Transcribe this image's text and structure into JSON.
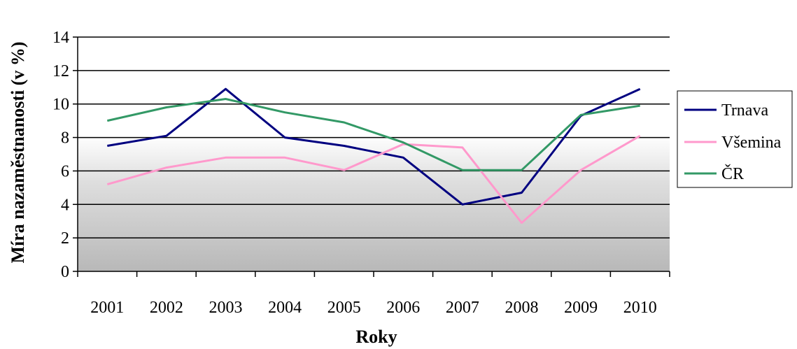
{
  "chart_data": {
    "type": "line",
    "title": "",
    "xlabel": "Roky",
    "ylabel": "Míra nazaměstnanosti (v %)",
    "categories": [
      "2001",
      "2002",
      "2003",
      "2004",
      "2005",
      "2006",
      "2007",
      "2008",
      "2009",
      "2010"
    ],
    "ylim": [
      0,
      14
    ],
    "yticks": [
      0,
      2,
      4,
      6,
      8,
      10,
      12,
      14
    ],
    "grid": true,
    "legend_position": "right",
    "series": [
      {
        "name": "Trnava",
        "color": "#000080",
        "values": [
          7.5,
          8.1,
          10.9,
          8.0,
          7.5,
          6.8,
          4.0,
          4.7,
          9.3,
          10.9
        ]
      },
      {
        "name": "Všemina",
        "color": "#ff99cc",
        "values": [
          5.2,
          6.2,
          6.8,
          6.8,
          6.05,
          7.6,
          7.4,
          2.9,
          6.05,
          8.1
        ]
      },
      {
        "name": "ČR",
        "color": "#339966",
        "values": [
          9.0,
          9.8,
          10.3,
          9.5,
          8.9,
          7.7,
          6.05,
          6.05,
          9.35,
          9.9
        ]
      }
    ]
  }
}
